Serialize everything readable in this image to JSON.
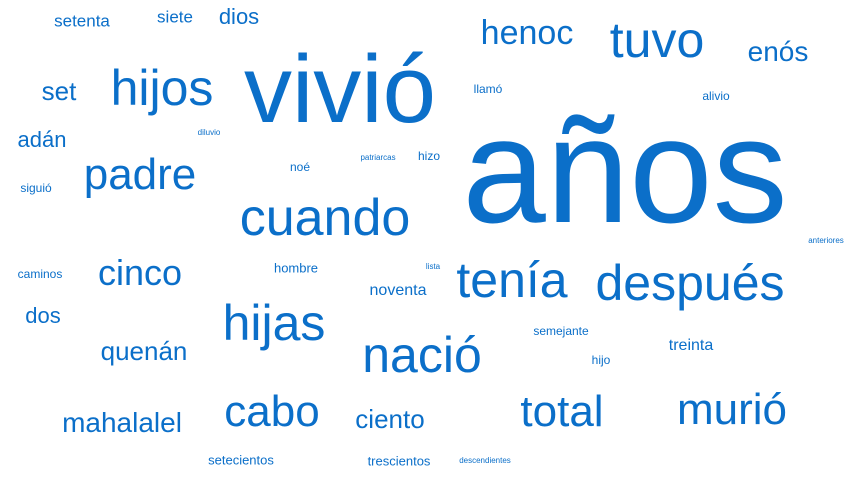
{
  "color": "#0b6fc9",
  "words": [
    {
      "text": "años"
    },
    {
      "text": "vivió"
    },
    {
      "text": "cuando"
    },
    {
      "text": "después"
    },
    {
      "text": "tenía"
    },
    {
      "text": "hijas"
    },
    {
      "text": "nació"
    },
    {
      "text": "tuvo"
    },
    {
      "text": "hijos"
    },
    {
      "text": "padre"
    },
    {
      "text": "total"
    },
    {
      "text": "murió"
    },
    {
      "text": "cabo"
    },
    {
      "text": "cinco"
    },
    {
      "text": "henoc"
    },
    {
      "text": "enós"
    },
    {
      "text": "mahalalel"
    },
    {
      "text": "quenán"
    },
    {
      "text": "ciento"
    },
    {
      "text": "set"
    },
    {
      "text": "adán"
    },
    {
      "text": "dos"
    },
    {
      "text": "dios"
    },
    {
      "text": "setenta"
    },
    {
      "text": "siete"
    },
    {
      "text": "noventa"
    },
    {
      "text": "treinta"
    },
    {
      "text": "setecientos"
    },
    {
      "text": "trescientos"
    },
    {
      "text": "hombre"
    },
    {
      "text": "caminos"
    },
    {
      "text": "siguió"
    },
    {
      "text": "noé"
    },
    {
      "text": "hizo"
    },
    {
      "text": "llamó"
    },
    {
      "text": "alivio"
    },
    {
      "text": "semejante"
    },
    {
      "text": "hijo"
    },
    {
      "text": "patriarcas"
    },
    {
      "text": "diluvio"
    },
    {
      "text": "lista"
    },
    {
      "text": "anteriores"
    },
    {
      "text": "descendientes"
    }
  ]
}
